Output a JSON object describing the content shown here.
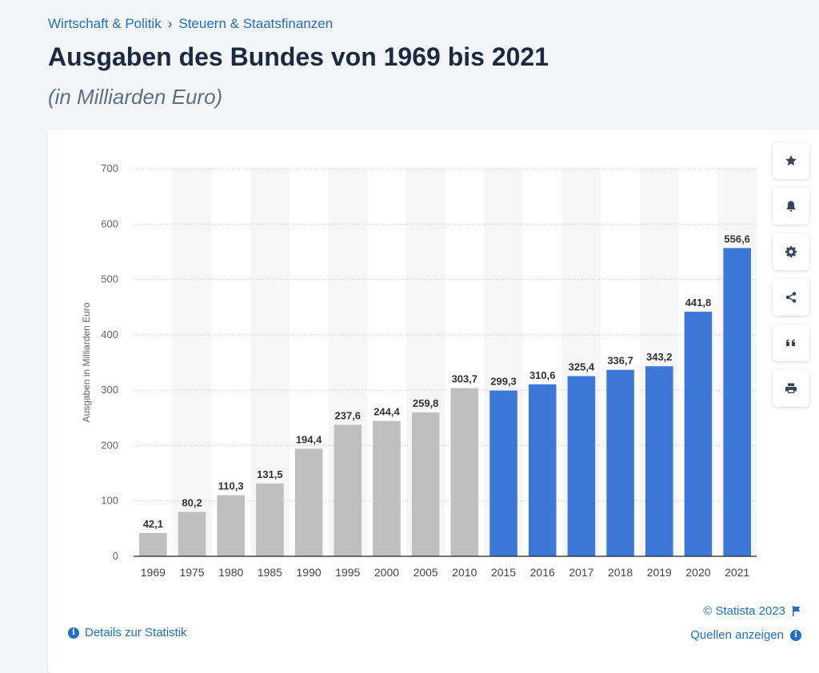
{
  "breadcrumb": {
    "items": [
      "Wirtschaft & Politik",
      "Steuern & Staatsfinanzen"
    ],
    "separator": "›"
  },
  "page": {
    "title": "Ausgaben des Bundes von 1969 bis 2021",
    "subtitle": "(in Milliarden Euro)"
  },
  "side_buttons": [
    {
      "name": "star-icon"
    },
    {
      "name": "bell-icon"
    },
    {
      "name": "gear-icon"
    },
    {
      "name": "share-icon"
    },
    {
      "name": "quote-icon"
    },
    {
      "name": "print-icon"
    }
  ],
  "footer": {
    "details_label": "Details zur Statistik",
    "copyright": "© Statista 2023",
    "sources_label": "Quellen anzeigen"
  },
  "colors": {
    "gray_bar": "#bfbfbf",
    "blue_bar": "#3b78d8",
    "link": "#1f6fc9",
    "title": "#1b2a40"
  },
  "chart_data": {
    "type": "bar",
    "title": "Ausgaben des Bundes von 1969 bis 2021",
    "subtitle": "(in Milliarden Euro)",
    "xlabel": "",
    "ylabel": "Ausgaben in Milliarden Euro",
    "ylim": [
      0,
      700
    ],
    "yticks": [
      0,
      100,
      200,
      300,
      400,
      500,
      600,
      700
    ],
    "categories": [
      "1969",
      "1975",
      "1980",
      "1985",
      "1990",
      "1995",
      "2000",
      "2005",
      "2010",
      "2015",
      "2016",
      "2017",
      "2018",
      "2019",
      "2020",
      "2021"
    ],
    "values": [
      42.1,
      80.2,
      110.3,
      131.5,
      194.4,
      237.6,
      244.4,
      259.8,
      303.7,
      299.3,
      310.6,
      325.4,
      336.7,
      343.2,
      441.8,
      556.6
    ],
    "value_labels": [
      "42,1",
      "80,2",
      "110,3",
      "131,5",
      "194,4",
      "237,6",
      "244,4",
      "259,8",
      "303,7",
      "299,3",
      "310,6",
      "325,4",
      "336,7",
      "343,2",
      "441,8",
      "556,6"
    ],
    "bar_colors": [
      "#bfbfbf",
      "#bfbfbf",
      "#bfbfbf",
      "#bfbfbf",
      "#bfbfbf",
      "#bfbfbf",
      "#bfbfbf",
      "#bfbfbf",
      "#bfbfbf",
      "#3b78d8",
      "#3b78d8",
      "#3b78d8",
      "#3b78d8",
      "#3b78d8",
      "#3b78d8",
      "#3b78d8"
    ],
    "grid": true,
    "legend": "none"
  }
}
